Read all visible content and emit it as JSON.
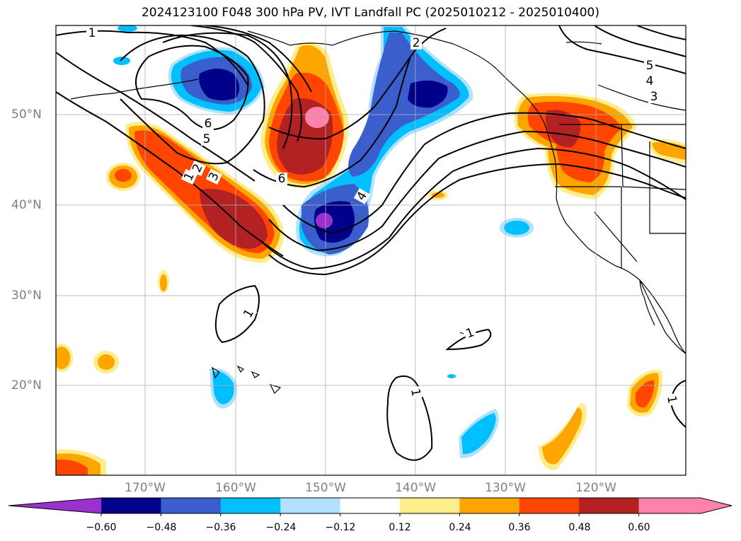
{
  "title": "2024123100 F048 300 hPa PV, IVT Landfall PC (2025010212 - 2025010400)",
  "lat_labels": [
    "50°N",
    "40°N",
    "30°N",
    "20°N"
  ],
  "lon_labels": [
    "170°W",
    "160°W",
    "150°W",
    "140°W",
    "130°W",
    "120°W"
  ],
  "contour_labels": [
    "1",
    "2",
    "6",
    "5",
    "1",
    "2",
    "3",
    "6",
    "4",
    "5",
    "4",
    "3",
    "1",
    "1",
    "1",
    "1"
  ],
  "colorbar": {
    "ticks": [
      "−0.60",
      "−0.48",
      "−0.36",
      "−0.24",
      "−0.12",
      "0.12",
      "0.24",
      "0.36",
      "0.48",
      "0.60"
    ],
    "colors": [
      "#9932cc",
      "#00008b",
      "#3a5fcd",
      "#00bfff",
      "#b0e2ff",
      "#ffffff",
      "#ffec8b",
      "#ffa500",
      "#ff4500",
      "#b22222",
      "#ff82ab",
      "#ff82ab"
    ]
  }
}
